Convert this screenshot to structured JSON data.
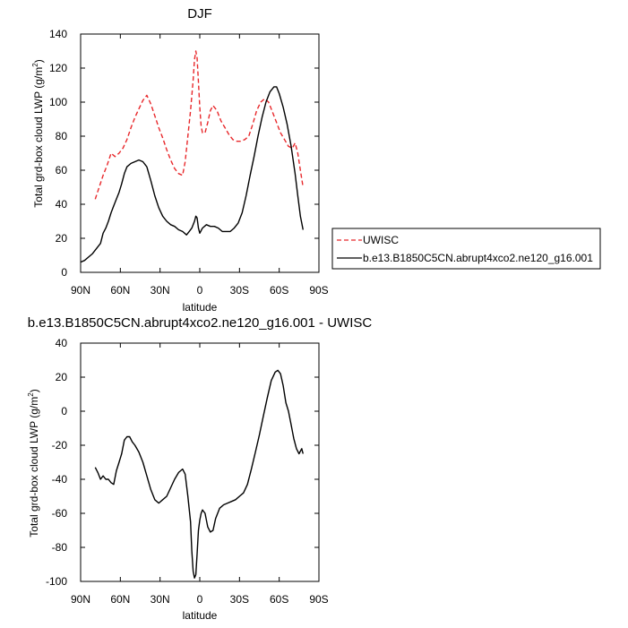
{
  "chart_data": [
    {
      "type": "line",
      "title": "DJF",
      "xlabel": "latitude",
      "ylabel": "Total grd-box cloud LWP (g/m²)",
      "xlim": [
        90,
        -90
      ],
      "ylim": [
        0,
        140
      ],
      "xticks": [
        "90N",
        "60N",
        "30N",
        "0",
        "30S",
        "60S",
        "90S"
      ],
      "yticks": [
        "0",
        "20",
        "40",
        "60",
        "80",
        "100",
        "120",
        "140"
      ],
      "legend_position": "right",
      "series": [
        {
          "name": "UWISC",
          "color": "#e8282b",
          "style": "dashed",
          "points": [
            [
              79,
              43
            ],
            [
              76,
              50
            ],
            [
              73,
              57
            ],
            [
              70,
              63
            ],
            [
              67,
              70
            ],
            [
              64,
              68
            ],
            [
              61,
              70
            ],
            [
              58,
              73
            ],
            [
              55,
              78
            ],
            [
              52,
              85
            ],
            [
              49,
              91
            ],
            [
              46,
              96
            ],
            [
              43,
              101
            ],
            [
              40,
              104
            ],
            [
              37,
              99
            ],
            [
              34,
              92
            ],
            [
              31,
              85
            ],
            [
              28,
              79
            ],
            [
              25,
              72
            ],
            [
              22,
              66
            ],
            [
              19,
              61
            ],
            [
              16,
              58
            ],
            [
              13,
              57
            ],
            [
              11,
              65
            ],
            [
              9,
              80
            ],
            [
              7,
              95
            ],
            [
              5,
              113
            ],
            [
              4,
              125
            ],
            [
              3,
              130
            ],
            [
              2,
              126
            ],
            [
              1,
              112
            ],
            [
              0,
              97
            ],
            [
              -1,
              86
            ],
            [
              -2,
              82
            ],
            [
              -4,
              82
            ],
            [
              -6,
              88
            ],
            [
              -8,
              95
            ],
            [
              -10,
              98
            ],
            [
              -13,
              95
            ],
            [
              -16,
              89
            ],
            [
              -19,
              85
            ],
            [
              -22,
              81
            ],
            [
              -25,
              78
            ],
            [
              -28,
              77
            ],
            [
              -31,
              77
            ],
            [
              -34,
              78
            ],
            [
              -37,
              80
            ],
            [
              -40,
              87
            ],
            [
              -43,
              95
            ],
            [
              -46,
              100
            ],
            [
              -49,
              102
            ],
            [
              -52,
              100
            ],
            [
              -55,
              94
            ],
            [
              -58,
              88
            ],
            [
              -61,
              82
            ],
            [
              -64,
              78
            ],
            [
              -67,
              74
            ],
            [
              -70,
              73
            ],
            [
              -72,
              76
            ],
            [
              -74,
              70
            ],
            [
              -76,
              60
            ],
            [
              -78,
              50
            ]
          ]
        },
        {
          "name": "b.e13.B1850C5CN.abrupt4xco2.ne120_g16.001",
          "color": "#000000",
          "style": "solid",
          "points": [
            [
              90,
              6
            ],
            [
              87,
              7
            ],
            [
              84,
              9
            ],
            [
              81,
              11
            ],
            [
              78,
              14
            ],
            [
              75,
              17
            ],
            [
              73,
              23
            ],
            [
              71,
              26
            ],
            [
              69,
              30
            ],
            [
              67,
              35
            ],
            [
              65,
              39
            ],
            [
              63,
              43
            ],
            [
              61,
              47
            ],
            [
              59,
              52
            ],
            [
              57,
              58
            ],
            [
              55,
              62
            ],
            [
              52,
              64
            ],
            [
              49,
              65
            ],
            [
              46,
              66
            ],
            [
              43,
              65
            ],
            [
              40,
              62
            ],
            [
              37,
              54
            ],
            [
              34,
              45
            ],
            [
              31,
              38
            ],
            [
              28,
              33
            ],
            [
              25,
              30
            ],
            [
              22,
              28
            ],
            [
              19,
              27
            ],
            [
              16,
              25
            ],
            [
              13,
              24
            ],
            [
              10,
              22
            ],
            [
              8,
              24
            ],
            [
              6,
              26
            ],
            [
              4,
              30
            ],
            [
              3,
              33
            ],
            [
              2,
              32
            ],
            [
              1,
              26
            ],
            [
              0,
              23
            ],
            [
              -2,
              26
            ],
            [
              -5,
              28
            ],
            [
              -8,
              27
            ],
            [
              -11,
              27
            ],
            [
              -14,
              26
            ],
            [
              -17,
              24
            ],
            [
              -20,
              24
            ],
            [
              -23,
              24
            ],
            [
              -26,
              26
            ],
            [
              -29,
              29
            ],
            [
              -32,
              35
            ],
            [
              -35,
              45
            ],
            [
              -38,
              57
            ],
            [
              -41,
              68
            ],
            [
              -44,
              80
            ],
            [
              -47,
              91
            ],
            [
              -50,
              100
            ],
            [
              -53,
              106
            ],
            [
              -56,
              109
            ],
            [
              -58,
              109
            ],
            [
              -60,
              105
            ],
            [
              -63,
              97
            ],
            [
              -66,
              87
            ],
            [
              -69,
              74
            ],
            [
              -72,
              58
            ],
            [
              -74,
              45
            ],
            [
              -76,
              33
            ],
            [
              -78,
              25
            ]
          ]
        }
      ]
    },
    {
      "type": "line",
      "title": "b.e13.B1850C5CN.abrupt4xco2.ne120_g16.001 - UWISC",
      "xlabel": "latitude",
      "ylabel": "Total grd-box cloud LWP (g/m²)",
      "xlim": [
        90,
        -90
      ],
      "ylim": [
        -100,
        40
      ],
      "xticks": [
        "90N",
        "60N",
        "30N",
        "0",
        "30S",
        "60S",
        "90S"
      ],
      "yticks": [
        "-100",
        "-80",
        "-60",
        "-40",
        "-20",
        "0",
        "20",
        "40"
      ],
      "series": [
        {
          "color": "#000000",
          "style": "solid",
          "points": [
            [
              79,
              -33
            ],
            [
              77,
              -36
            ],
            [
              75,
              -40
            ],
            [
              73,
              -38
            ],
            [
              71,
              -40
            ],
            [
              69,
              -40
            ],
            [
              67,
              -42
            ],
            [
              65,
              -43
            ],
            [
              63,
              -35
            ],
            [
              61,
              -30
            ],
            [
              59,
              -25
            ],
            [
              57,
              -17
            ],
            [
              55,
              -15
            ],
            [
              53,
              -15
            ],
            [
              51,
              -18
            ],
            [
              49,
              -20
            ],
            [
              46,
              -24
            ],
            [
              43,
              -30
            ],
            [
              40,
              -38
            ],
            [
              37,
              -46
            ],
            [
              34,
              -52
            ],
            [
              31,
              -54
            ],
            [
              28,
              -52
            ],
            [
              25,
              -50
            ],
            [
              22,
              -45
            ],
            [
              19,
              -40
            ],
            [
              16,
              -36
            ],
            [
              13,
              -34
            ],
            [
              11,
              -37
            ],
            [
              9,
              -50
            ],
            [
              7,
              -65
            ],
            [
              6,
              -82
            ],
            [
              5,
              -94
            ],
            [
              4,
              -98
            ],
            [
              3,
              -96
            ],
            [
              2,
              -84
            ],
            [
              1,
              -70
            ],
            [
              0,
              -64
            ],
            [
              -1,
              -60
            ],
            [
              -2,
              -58
            ],
            [
              -4,
              -60
            ],
            [
              -6,
              -68
            ],
            [
              -8,
              -71
            ],
            [
              -10,
              -70
            ],
            [
              -12,
              -63
            ],
            [
              -15,
              -57
            ],
            [
              -18,
              -55
            ],
            [
              -21,
              -54
            ],
            [
              -24,
              -53
            ],
            [
              -27,
              -52
            ],
            [
              -30,
              -50
            ],
            [
              -33,
              -48
            ],
            [
              -36,
              -43
            ],
            [
              -39,
              -34
            ],
            [
              -42,
              -24
            ],
            [
              -45,
              -14
            ],
            [
              -48,
              -3
            ],
            [
              -51,
              8
            ],
            [
              -54,
              18
            ],
            [
              -57,
              23
            ],
            [
              -59,
              24
            ],
            [
              -61,
              22
            ],
            [
              -63,
              15
            ],
            [
              -65,
              5
            ],
            [
              -67,
              0
            ],
            [
              -69,
              -8
            ],
            [
              -71,
              -16
            ],
            [
              -73,
              -22
            ],
            [
              -75,
              -25
            ],
            [
              -77,
              -22
            ],
            [
              -78,
              -25
            ]
          ]
        }
      ]
    }
  ]
}
